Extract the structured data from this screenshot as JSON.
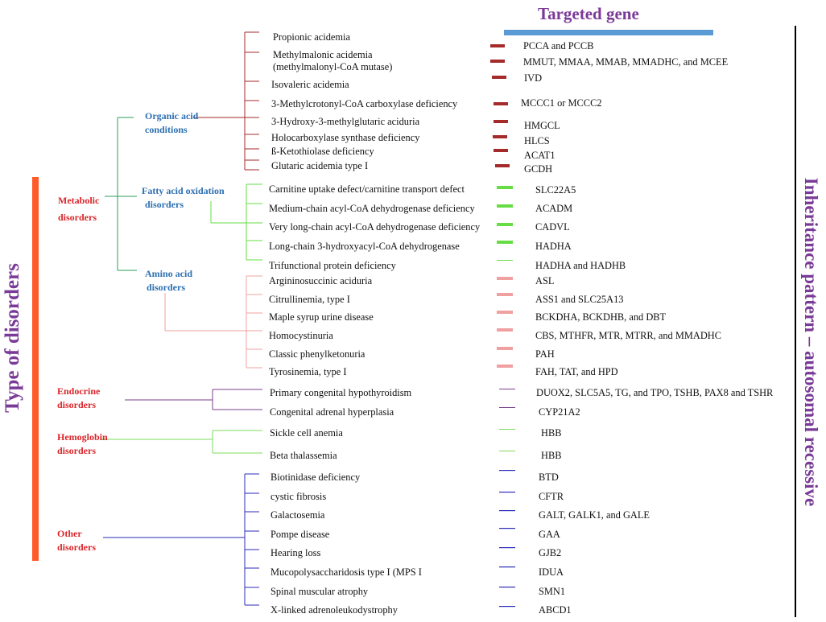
{
  "header": {
    "targeted_gene": "Targeted gene"
  },
  "side_titles": {
    "type_of_disorders": "Type of disorders",
    "inheritance": "Inheritance pattern – autosomal recessive"
  },
  "categories": {
    "metabolic": [
      "Metabolic",
      "disorders"
    ],
    "endocrine": [
      "Endocrine",
      "disorders"
    ],
    "hemoglobin": [
      "Hemoglobin",
      "disorders"
    ],
    "other": [
      "Other",
      "disorders"
    ]
  },
  "subcategories": {
    "organic": [
      "Organic acid",
      "conditions"
    ],
    "fatty": [
      "Fatty acid oxidation",
      "disorders"
    ],
    "amino": [
      "Amino acid",
      "disorders"
    ]
  },
  "colors": {
    "organic": "#a52a2a",
    "fatty": "#66dd44",
    "amino": "#f0a0a0",
    "endocrine": "#7b3f8c",
    "hemoglobin": "#7edc5c",
    "other": "#2b2bb8",
    "metabolic_branch": "#2e9e58",
    "orange_bar": "#ff5a2a",
    "gene_bar": "#5a9bd5",
    "purple_title": "#7a3a97",
    "category_red": "#d9262a",
    "sub_blue": "#2c6fb0"
  },
  "rows": [
    {
      "disease": "Propionic acidemia",
      "gene": "PCCA and PCCB"
    },
    {
      "disease": "Methylmalonic acidemia",
      "disease2": "(methylmalonyl-CoA mutase)",
      "gene": "MMUT, MMAA, MMAB, MMADHC, and MCEE"
    },
    {
      "disease": "",
      "gene": "IVD"
    },
    {
      "disease": "Isovaleric acidemia",
      "gene": ""
    },
    {
      "disease": "3-Methylcrotonyl-CoA  carboxylase deficiency",
      "gene": "MCCC1 or MCCC2"
    },
    {
      "disease": "3-Hydroxy-3-methylglutaric aciduria",
      "gene": "HMGCL"
    },
    {
      "disease": "Holocarboxylase synthase deficiency",
      "gene": "HLCS"
    },
    {
      "disease": "ß-Ketothiolase deficiency",
      "gene": "ACAT1"
    },
    {
      "disease": "Glutaric acidemia type I",
      "gene": "GCDH"
    },
    {
      "disease": "Carnitine uptake defect/carnitine transport defect",
      "gene": "SLC22A5"
    },
    {
      "disease": "Medium-chain acyl-CoA dehydrogenase deficiency",
      "gene": "ACADM"
    },
    {
      "disease": "Very long-chain acyl-CoA dehydrogenase deficiency",
      "gene": "CADVL"
    },
    {
      "disease": "Long-chain 3-hydroxyacyl-CoA dehydrogenase",
      "gene": "HADHA"
    },
    {
      "disease": "Trifunctional protein deficiency",
      "gene": "HADHA and HADHB"
    },
    {
      "disease": "Argininosuccinic aciduria",
      "gene": "ASL"
    },
    {
      "disease": "Citrullinemia, type I",
      "gene": "ASS1 and SLC25A13"
    },
    {
      "disease": "Maple syrup urine disease",
      "gene": "BCKDHA, BCKDHB, and DBT"
    },
    {
      "disease": "Homocystinuria",
      "gene": "CBS, MTHFR, MTR, MTRR, and MMADHC"
    },
    {
      "disease": "Classic phenylketonuria",
      "gene": "PAH"
    },
    {
      "disease": "Tyrosinemia, type I",
      "gene": "FAH, TAT, and HPD"
    },
    {
      "disease": "Primary congenital hypothyroidism",
      "gene": "DUOX2, SLC5A5, TG, and TPO, TSHB, PAX8 and TSHR"
    },
    {
      "disease": "Congenital adrenal hyperplasia",
      "gene": "CYP21A2"
    },
    {
      "disease": "Sickle cell anemia",
      "gene": "HBB"
    },
    {
      "disease": "Beta thalassemia",
      "gene": "HBB"
    },
    {
      "disease": "Biotinidase deficiency",
      "gene": "BTD"
    },
    {
      "disease": "cystic fibrosis",
      "gene": "CFTR"
    },
    {
      "disease": "Galactosemia",
      "gene": "GALT, GALK1, and GALE"
    },
    {
      "disease": "Pompe disease",
      "gene": "GAA"
    },
    {
      "disease": "Hearing loss",
      "gene": "GJB2"
    },
    {
      "disease": "Mucopolysaccharidosis type I (MPS I",
      "gene": "IDUA"
    },
    {
      "disease": "Spinal muscular atrophy",
      "gene": "SMN1"
    },
    {
      "disease": "X-linked adrenoleukodystrophy",
      "gene": "ABCD1"
    }
  ]
}
